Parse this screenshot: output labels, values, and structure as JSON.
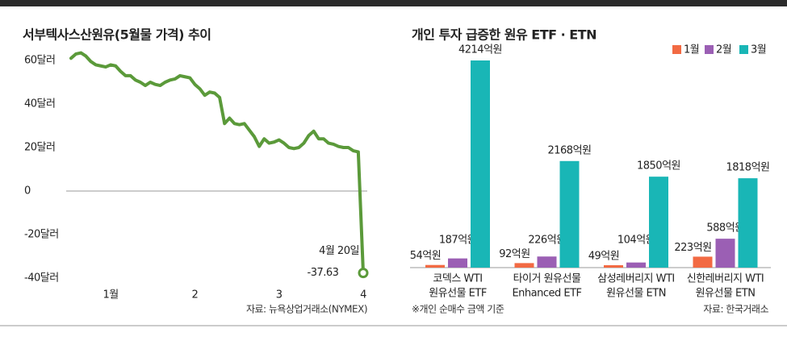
{
  "chart_data": [
    {
      "type": "line",
      "title": "서부텍사스산원유(5월물 가격) 추이",
      "values": [
        61,
        63,
        63.5,
        62,
        59.5,
        58,
        57.5,
        57,
        58,
        57.5,
        55,
        53,
        53,
        51,
        50,
        48.5,
        50,
        49,
        48.5,
        50,
        51,
        51.5,
        53,
        52.5,
        52,
        49,
        47,
        44,
        45.5,
        45,
        43,
        31,
        33.5,
        31,
        30.5,
        31,
        28,
        25,
        20.5,
        24,
        22,
        22.5,
        23.5,
        22,
        20,
        19.5,
        20,
        22,
        25.5,
        27.5,
        24,
        24,
        22,
        21.5,
        20.5,
        20,
        20,
        18.5,
        18,
        -37.63
      ],
      "color": "#5b9a3a",
      "xlim": [
        0,
        59
      ],
      "xticks": [
        {
          "value": 8,
          "label": "1월"
        },
        {
          "value": 25,
          "label": "2"
        },
        {
          "value": 42,
          "label": "3"
        },
        {
          "value": 59,
          "label": "4"
        }
      ],
      "ylim": [
        -40,
        60
      ],
      "yticks": [
        {
          "value": 60,
          "label": "60달러"
        },
        {
          "value": 40,
          "label": "40달러"
        },
        {
          "value": 20,
          "label": "20달러"
        },
        0,
        {
          "value": -20,
          "label": "-20달러"
        },
        {
          "value": -40,
          "label": "-40달러"
        }
      ],
      "grid": false,
      "zero_line": true,
      "annotation": "4월 20일",
      "source": "자료: 뉴욕상업거래소(NYMEX)"
    },
    {
      "type": "bar",
      "title": "개인 투자 급증한 원유 ETF · ETN",
      "categories": [
        [
          "코덱스 WTI",
          "원유선물 ETF"
        ],
        [
          "타이거 원유선물",
          "Enhanced ETF"
        ],
        [
          "삼성레버리지 WTI",
          "원유선물 ETN"
        ],
        [
          "신한레버리지 WTI",
          "원유선물 ETN"
        ]
      ],
      "series": [
        {
          "name": "1월",
          "color": "#f26a43",
          "values": [
            54,
            92,
            49,
            223
          ],
          "value_labels": [
            "54억원",
            "92억원",
            "49억원",
            "223억원"
          ]
        },
        {
          "name": "2월",
          "color": "#9b5fb4",
          "values": [
            187,
            226,
            104,
            588
          ],
          "value_labels": [
            "187억원",
            "226억원",
            "104억원",
            "588억원"
          ]
        },
        {
          "name": "3월",
          "color": "#19b6b6",
          "values": [
            4214,
            2168,
            1850,
            1818
          ],
          "value_labels": [
            "4214억원",
            "2168억원",
            "1850억원",
            "1818억원"
          ]
        }
      ],
      "legend": "top-right",
      "note": "※개인 순매수 금액 기준",
      "source": "자료: 한국거래소"
    }
  ]
}
